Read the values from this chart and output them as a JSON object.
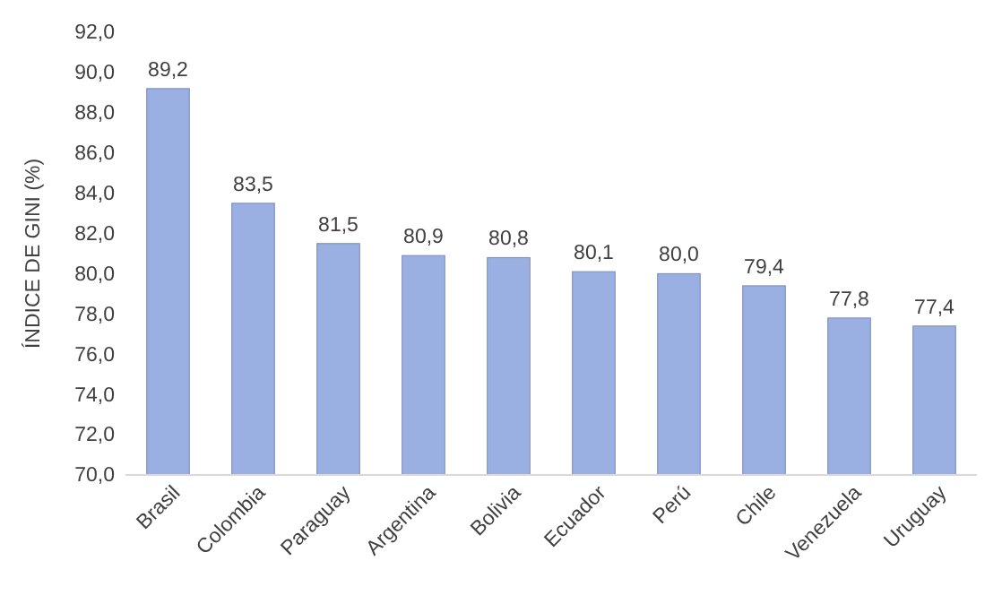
{
  "chart_data": {
    "type": "bar",
    "ylabel": "ÍNDICE DE GINI (%)",
    "categories": [
      "Brasil",
      "Colombia",
      "Paraguay",
      "Argentina",
      "Bolivia",
      "Ecuador",
      "Perú",
      "Chile",
      "Venezuela",
      "Uruguay"
    ],
    "values": [
      89.2,
      83.5,
      81.5,
      80.9,
      80.8,
      80.1,
      80.0,
      79.4,
      77.8,
      77.4
    ],
    "value_labels": [
      "89,2",
      "83,5",
      "81,5",
      "80,9",
      "80,8",
      "80,1",
      "80,0",
      "79,4",
      "77,8",
      "77,4"
    ],
    "color": "#9bb0e2",
    "ylim": [
      70,
      92
    ],
    "yticks": [
      {
        "value": 70,
        "label": "70,0"
      },
      {
        "value": 72,
        "label": "72,0"
      },
      {
        "value": 74,
        "label": "74,0"
      },
      {
        "value": 76,
        "label": "76,0"
      },
      {
        "value": 78,
        "label": "78,0"
      },
      {
        "value": 80,
        "label": "80,0"
      },
      {
        "value": 82,
        "label": "82,0"
      },
      {
        "value": 84,
        "label": "84,0"
      },
      {
        "value": 86,
        "label": "86,0"
      },
      {
        "value": 88,
        "label": "88,0"
      },
      {
        "value": 90,
        "label": "90,0"
      },
      {
        "value": 92,
        "label": "92,0"
      }
    ],
    "grid": false
  }
}
